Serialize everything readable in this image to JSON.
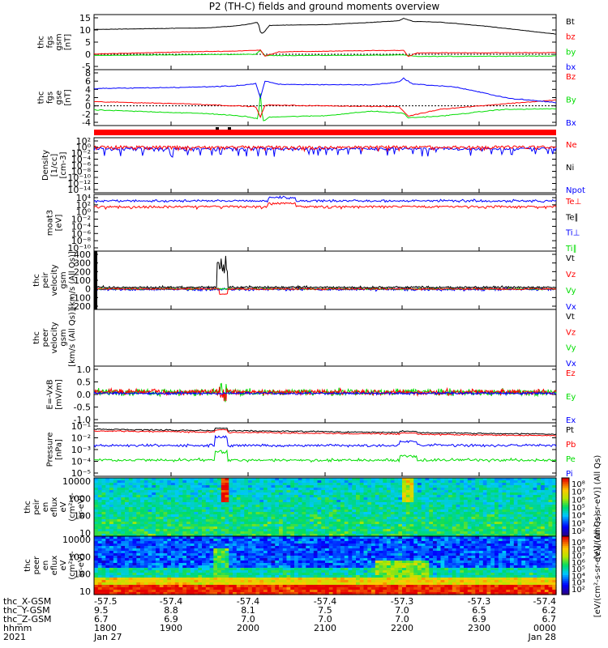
{
  "title": "P2 (TH-C) fields and ground moments overview",
  "colors": {
    "black": "#000000",
    "red": "#ff0000",
    "green": "#00dd00",
    "blue": "#0000ff"
  },
  "chart_data": {
    "type": "line",
    "xaxis": {
      "row_labels": [
        "thc_X-GSM",
        "thc_Y-GSM",
        "thc_Z-GSM",
        "hhmm",
        "2021"
      ],
      "columns": [
        [
          "-57.5",
          "9.5",
          "6.7",
          "1800",
          "Jan 27"
        ],
        [
          "-57.4",
          "8.8",
          "6.9",
          "1900",
          ""
        ],
        [
          "-57.4",
          "8.1",
          "7.0",
          "2000",
          ""
        ],
        [
          "-57.4",
          "7.5",
          "7.0",
          "2100",
          ""
        ],
        [
          "-57.3",
          "7.0",
          "7.0",
          "2200",
          ""
        ],
        [
          "-57.3",
          "6.5",
          "6.9",
          "2300",
          ""
        ],
        [
          "-57.4",
          "6.2",
          "6.7",
          "0000",
          "Jan 28"
        ]
      ]
    },
    "panels": [
      {
        "id": "fgs-gsm",
        "ylabel": [
          "thc",
          "fgs",
          "gsm",
          "[nT]"
        ],
        "yticks": [
          "15",
          "10",
          "5",
          "0",
          "-5"
        ],
        "legend": [
          {
            "name": "Bt",
            "color": "#000000"
          },
          {
            "name": "bz",
            "color": "#ff0000"
          },
          {
            "name": "by",
            "color": "#00dd00"
          },
          {
            "name": "bx",
            "color": "#0000ff"
          }
        ]
      },
      {
        "id": "fgs-gse",
        "ylabel": [
          "thc",
          "fgs",
          "gse",
          "[nT]"
        ],
        "yticks": [
          "8",
          "6",
          "4",
          "2",
          "0",
          "-2",
          "-4"
        ],
        "legend": [
          {
            "name": "Bz",
            "color": "#ff0000"
          },
          {
            "name": "By",
            "color": "#00dd00"
          },
          {
            "name": "Bx",
            "color": "#0000ff"
          }
        ]
      },
      {
        "id": "density",
        "ylabel": [
          "Density",
          "[1/cc]",
          "[cm-3]"
        ],
        "yticks": [
          "10²",
          "10⁰",
          "10⁻²",
          "10⁻⁴",
          "10⁻⁶",
          "10⁻⁸",
          "10⁻¹⁰",
          "10⁻¹²",
          "10⁻¹⁴"
        ],
        "legend": [
          {
            "name": "Ne",
            "color": "#ff0000"
          },
          {
            "name": "Ni",
            "color": "#000000"
          },
          {
            "name": "Npot",
            "color": "#0000ff"
          }
        ]
      },
      {
        "id": "temperature",
        "ylabel": [
          "moat3",
          "[eV]"
        ],
        "yticks": [
          "10⁴",
          "10²",
          "10⁰",
          "10⁻²",
          "10⁻⁴",
          "10⁻⁶",
          "10⁻⁸",
          "10⁻¹⁰"
        ],
        "legend": [
          {
            "name": "Te⊥",
            "color": "#ff0000"
          },
          {
            "name": "Te∥",
            "color": "#000000"
          },
          {
            "name": "Ti⊥",
            "color": "#0000ff"
          },
          {
            "name": "Ti∥",
            "color": "#00dd00"
          }
        ]
      },
      {
        "id": "peir-velocity",
        "ylabel": [
          "thc",
          "peir",
          "velocity",
          "gsm",
          "[km/s (All Qs)]"
        ],
        "yticks": [
          "400",
          "300",
          "200",
          "100",
          "0",
          "-100",
          "-200"
        ],
        "legend": [
          {
            "name": "Vt",
            "color": "#000000"
          },
          {
            "name": "Vz",
            "color": "#ff0000"
          },
          {
            "name": "Vy",
            "color": "#00dd00"
          },
          {
            "name": "Vx",
            "color": "#0000ff"
          }
        ]
      },
      {
        "id": "peer-velocity",
        "ylabel": [
          "thc",
          "peer",
          "velocity",
          "gsm",
          "[km/s (All Qs)]"
        ],
        "yticks": [],
        "legend": [
          {
            "name": "Vt",
            "color": "#000000"
          },
          {
            "name": "Vz",
            "color": "#ff0000"
          },
          {
            "name": "Vy",
            "color": "#00dd00"
          },
          {
            "name": "Vx",
            "color": "#0000ff"
          }
        ]
      },
      {
        "id": "efield",
        "ylabel": [
          "E=-VxB",
          "[mV/m]"
        ],
        "yticks": [
          "1.0",
          "0.5",
          "0.0",
          "-0.5",
          "-1.0"
        ],
        "legend": [
          {
            "name": "Ez",
            "color": "#ff0000"
          },
          {
            "name": "Ey",
            "color": "#00dd00"
          },
          {
            "name": "Ex",
            "color": "#0000ff"
          }
        ]
      },
      {
        "id": "pressure",
        "ylabel": [
          "Pressure",
          "[nPa]"
        ],
        "yticks": [
          "10⁻¹",
          "10⁻²",
          "10⁻³",
          "10⁻⁴",
          "10⁻⁵"
        ],
        "legend": [
          {
            "name": "Pt",
            "color": "#000000"
          },
          {
            "name": "Pb",
            "color": "#ff0000"
          },
          {
            "name": "Pe",
            "color": "#00dd00"
          },
          {
            "name": "Pi",
            "color": "#0000ff"
          }
        ]
      },
      {
        "id": "peir-spec",
        "ylabel": [
          "thc",
          "peir",
          "en",
          "eflux",
          "eV",
          "(cm²-s-",
          "sr-eV)"
        ],
        "yticks": [
          "10000",
          "1000",
          "100",
          "10"
        ]
      },
      {
        "id": "peer-spec",
        "ylabel": [
          "thc",
          "peer",
          "en",
          "eflux",
          "eV",
          "(cm²-s-",
          "sr-eV)"
        ],
        "yticks": [
          "10000",
          "1000",
          "100",
          "10"
        ]
      }
    ],
    "colorbars": [
      {
        "label": "[eV/(cm²-s-sr-eV)] (All Qs)",
        "ticks": [
          "10⁸",
          "10⁷",
          "10⁶",
          "10⁵",
          "10⁴",
          "10³",
          "10²"
        ]
      },
      {
        "label": "[eV/(cm²-s-sr-eV)] (All Qs)",
        "ticks": [
          "10⁹",
          "10⁸",
          "10⁷",
          "10⁶",
          "10⁵",
          "10⁴",
          "10³",
          "10²"
        ]
      }
    ],
    "series_shapes": {
      "Bt": [
        [
          0,
          10.2
        ],
        [
          0.25,
          10.9
        ],
        [
          0.3,
          11.6
        ],
        [
          0.33,
          12.2
        ],
        [
          0.355,
          13.2
        ],
        [
          0.36,
          9.2
        ],
        [
          0.365,
          8.5
        ],
        [
          0.38,
          11.9
        ],
        [
          0.5,
          12.2
        ],
        [
          0.6,
          13.1
        ],
        [
          0.66,
          13.8
        ],
        [
          0.67,
          14.8
        ],
        [
          0.69,
          13.5
        ],
        [
          0.75,
          13.2
        ],
        [
          0.85,
          11.5
        ],
        [
          0.93,
          9.8
        ],
        [
          1,
          8.3
        ]
      ],
      "bz": [
        [
          0,
          0.1
        ],
        [
          0.2,
          1.0
        ],
        [
          0.3,
          1.3
        ],
        [
          0.36,
          1.7
        ],
        [
          0.37,
          -0.7
        ],
        [
          0.4,
          1.0
        ],
        [
          0.6,
          1.5
        ],
        [
          0.67,
          1.6
        ],
        [
          0.68,
          -0.9
        ],
        [
          0.7,
          0.6
        ],
        [
          0.85,
          0.6
        ],
        [
          1,
          0.7
        ]
      ],
      "by": [
        [
          0,
          -0.5
        ],
        [
          0.35,
          0.0
        ],
        [
          0.36,
          1.5
        ],
        [
          0.37,
          -0.5
        ],
        [
          0.45,
          -0.5
        ],
        [
          0.6,
          -0.4
        ],
        [
          0.67,
          -0.3
        ],
        [
          0.7,
          -0.9
        ],
        [
          1,
          -0.7
        ]
      ],
      "Bz_gse": [
        [
          0,
          4.2
        ],
        [
          0.2,
          4.5
        ],
        [
          0.3,
          4.8
        ],
        [
          0.35,
          5.4
        ],
        [
          0.36,
          2.0
        ],
        [
          0.37,
          6.0
        ],
        [
          0.4,
          5.2
        ],
        [
          0.6,
          5.1
        ],
        [
          0.66,
          5.8
        ],
        [
          0.67,
          6.7
        ],
        [
          0.69,
          5.3
        ],
        [
          0.78,
          4.6
        ],
        [
          0.9,
          1.8
        ],
        [
          1,
          0.8
        ]
      ],
      "By_gse": [
        [
          0,
          -1.0
        ],
        [
          0.25,
          -1.9
        ],
        [
          0.33,
          -2.6
        ],
        [
          0.355,
          -3.2
        ],
        [
          0.36,
          3.0
        ],
        [
          0.365,
          -3.8
        ],
        [
          0.38,
          -2.7
        ],
        [
          0.5,
          -2.4
        ],
        [
          0.6,
          -1.3
        ],
        [
          0.67,
          -1.8
        ],
        [
          0.68,
          -2.9
        ],
        [
          0.75,
          -2.5
        ],
        [
          0.88,
          -0.9
        ],
        [
          1,
          -0.7
        ]
      ],
      "Bx_gse": [
        [
          0,
          1.0
        ],
        [
          0.2,
          0.5
        ],
        [
          0.35,
          -0.2
        ],
        [
          0.36,
          -2.8
        ],
        [
          0.37,
          0.2
        ],
        [
          0.5,
          0.0
        ],
        [
          0.66,
          -0.2
        ],
        [
          0.68,
          -2.5
        ],
        [
          0.75,
          -0.8
        ],
        [
          0.9,
          0.6
        ],
        [
          1,
          1.4
        ]
      ]
    }
  }
}
